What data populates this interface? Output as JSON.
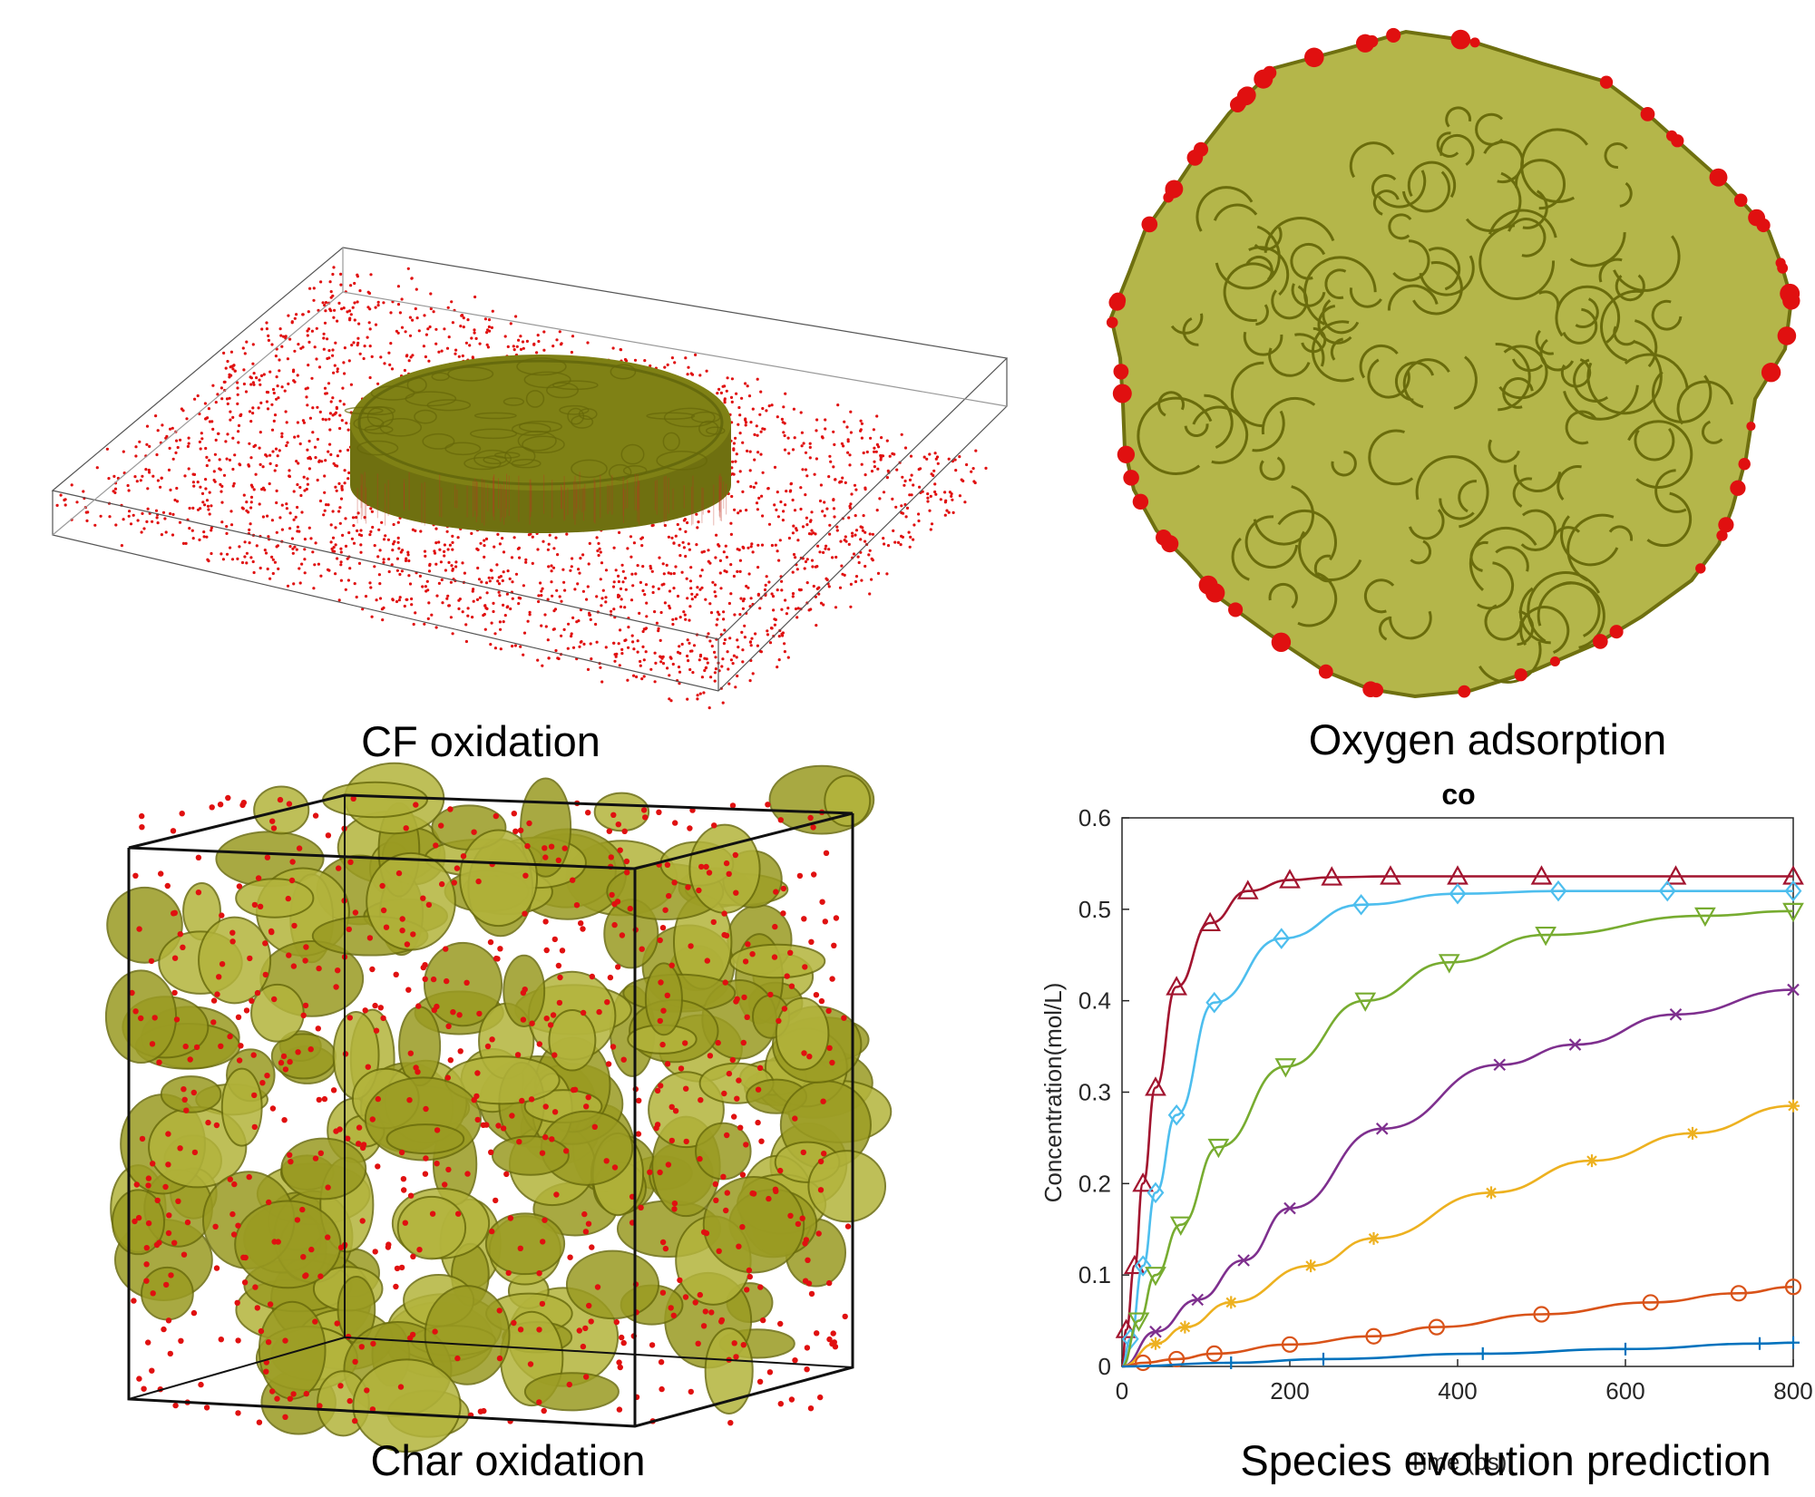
{
  "panels": {
    "cf": {
      "caption": "CF oxidation"
    },
    "oxygen": {
      "caption": "Oxygen adsorption"
    },
    "char": {
      "caption": "Char oxidation"
    },
    "species": {
      "caption": "Species evolution prediction"
    }
  },
  "colors": {
    "carbon": "#8a8a14",
    "carbon_light": "#b8b843",
    "oxygen": "#e01010",
    "box": "#222222"
  },
  "chart_data": {
    "type": "line",
    "title": "co",
    "xlabel": "Time (ps)",
    "ylabel": "Concentration(mol/L)",
    "xlim": [
      0,
      800
    ],
    "ylim": [
      0,
      0.6
    ],
    "xticks": [
      0,
      200,
      400,
      600,
      800
    ],
    "yticks": [
      0,
      0.1,
      0.2,
      0.3,
      0.4,
      0.5,
      0.6
    ],
    "grid": false,
    "series": [
      {
        "color": "#a2142f",
        "marker": "triangle-up",
        "points": [
          [
            0,
            0
          ],
          [
            5,
            0.04
          ],
          [
            15,
            0.11
          ],
          [
            25,
            0.2
          ],
          [
            40,
            0.305
          ],
          [
            65,
            0.415
          ],
          [
            105,
            0.485
          ],
          [
            150,
            0.52
          ],
          [
            200,
            0.532
          ],
          [
            250,
            0.535
          ],
          [
            320,
            0.536
          ],
          [
            400,
            0.536
          ],
          [
            500,
            0.536
          ],
          [
            660,
            0.536
          ],
          [
            800,
            0.536
          ]
        ]
      },
      {
        "color": "#4dbeee",
        "marker": "diamond",
        "points": [
          [
            0,
            0
          ],
          [
            10,
            0.03
          ],
          [
            25,
            0.11
          ],
          [
            40,
            0.19
          ],
          [
            65,
            0.275
          ],
          [
            110,
            0.398
          ],
          [
            190,
            0.468
          ],
          [
            285,
            0.505
          ],
          [
            400,
            0.517
          ],
          [
            520,
            0.52
          ],
          [
            650,
            0.52
          ],
          [
            800,
            0.52
          ]
        ]
      },
      {
        "color": "#77ac30",
        "marker": "triangle-down",
        "points": [
          [
            0,
            0
          ],
          [
            20,
            0.05
          ],
          [
            40,
            0.1
          ],
          [
            70,
            0.155
          ],
          [
            115,
            0.24
          ],
          [
            195,
            0.328
          ],
          [
            290,
            0.4
          ],
          [
            390,
            0.442
          ],
          [
            505,
            0.472
          ],
          [
            695,
            0.493
          ],
          [
            800,
            0.498
          ]
        ]
      },
      {
        "color": "#7e2f8e",
        "marker": "x",
        "points": [
          [
            0,
            0
          ],
          [
            40,
            0.038
          ],
          [
            90,
            0.073
          ],
          [
            145,
            0.116
          ],
          [
            200,
            0.173
          ],
          [
            310,
            0.26
          ],
          [
            450,
            0.33
          ],
          [
            540,
            0.352
          ],
          [
            660,
            0.385
          ],
          [
            800,
            0.412
          ]
        ]
      },
      {
        "color": "#edb120",
        "marker": "asterisk",
        "points": [
          [
            0,
            0
          ],
          [
            40,
            0.025
          ],
          [
            75,
            0.043
          ],
          [
            130,
            0.07
          ],
          [
            225,
            0.11
          ],
          [
            300,
            0.14
          ],
          [
            440,
            0.19
          ],
          [
            560,
            0.225
          ],
          [
            680,
            0.255
          ],
          [
            800,
            0.285
          ]
        ]
      },
      {
        "color": "#d95319",
        "marker": "circle",
        "points": [
          [
            0,
            0
          ],
          [
            25,
            0.004
          ],
          [
            65,
            0.008
          ],
          [
            110,
            0.014
          ],
          [
            200,
            0.024
          ],
          [
            300,
            0.033
          ],
          [
            375,
            0.043
          ],
          [
            500,
            0.057
          ],
          [
            630,
            0.07
          ],
          [
            735,
            0.08
          ],
          [
            800,
            0.087
          ]
        ]
      },
      {
        "color": "#0072bd",
        "marker": "plus",
        "points": [
          [
            0,
            0
          ],
          [
            130,
            0.004
          ],
          [
            240,
            0.008
          ],
          [
            430,
            0.014
          ],
          [
            600,
            0.019
          ],
          [
            760,
            0.025
          ],
          [
            800,
            0.026
          ]
        ]
      }
    ]
  }
}
